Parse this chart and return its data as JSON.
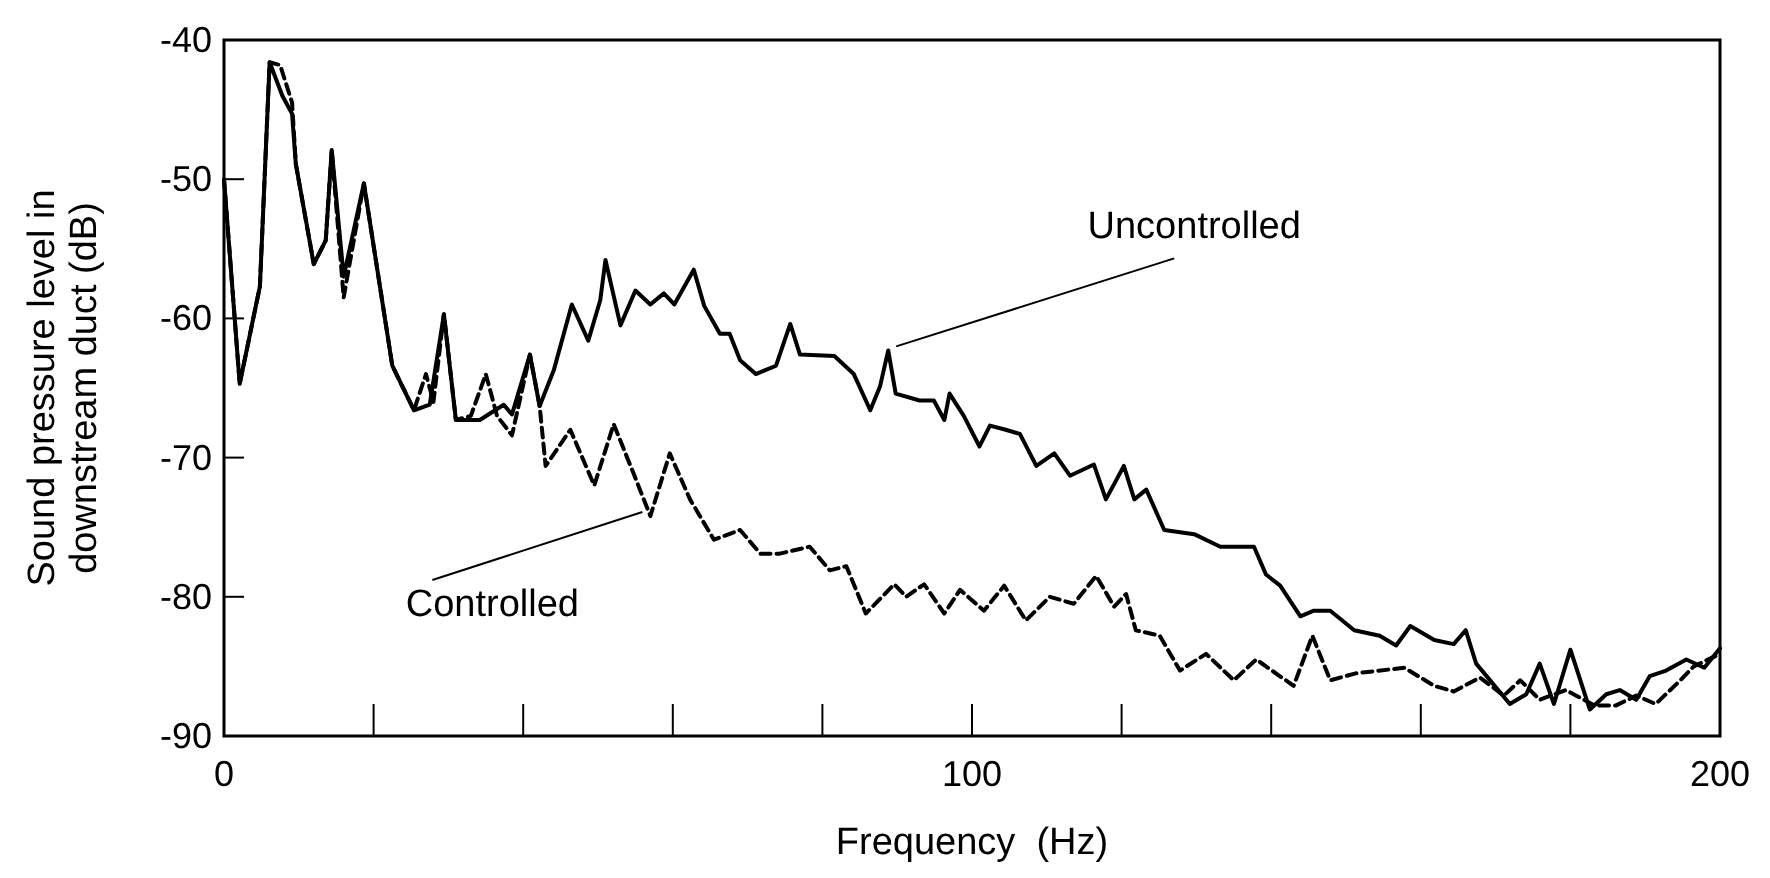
{
  "chart_data": {
    "type": "line",
    "xlabel": "Frequency  (Hz)",
    "ylabel": "Sound pressure level in downstream duct (dB)",
    "xlim": [
      0,
      200
    ],
    "ylim": [
      -90,
      -40
    ],
    "xticks": [
      0,
      {
        "value": 20,
        "label": null
      },
      {
        "value": 40,
        "label": null
      },
      {
        "value": 60,
        "label": null
      },
      {
        "value": 80,
        "label": null
      },
      100,
      {
        "value": 120,
        "label": null
      },
      {
        "value": 140,
        "label": null
      },
      {
        "value": 160,
        "label": null
      },
      {
        "value": 180,
        "label": null
      },
      200
    ],
    "yticks": [
      -90,
      -80,
      -70,
      -60,
      -50,
      -40
    ],
    "grid": false,
    "marker": "none",
    "series": [
      {
        "color": "#000000",
        "line_style": "solid",
        "x": [
          0,
          2.1,
          4.8,
          6.1,
          7.8,
          9.1,
          9.6,
          12,
          13.6,
          14.4,
          16,
          18.7,
          22.5,
          25.4,
          27.5,
          29.4,
          31,
          34.2,
          37.4,
          38.5,
          40.9,
          42.2,
          44.1,
          46.5,
          48.7,
          50.3,
          51,
          53,
          55,
          57,
          58.8,
          60.2,
          62.8,
          64.2,
          66.3,
          67.6,
          69,
          71.1,
          73.8,
          75.7,
          77,
          81.6,
          84.2,
          86.4,
          87.7,
          88.8,
          89.8,
          93,
          94.9,
          96.3,
          97,
          98.9,
          101,
          102.4,
          104.5,
          106.4,
          108.6,
          111,
          113.1,
          116.3,
          117.9,
          119.3,
          120.3,
          121.7,
          123.3,
          125.7,
          129.7,
          133.2,
          137.7,
          139.3,
          141.2,
          143.9,
          145.7,
          147.9,
          151.1,
          154.5,
          156.7,
          158.6,
          161.8,
          164.4,
          166,
          167.4,
          171.9,
          174.1,
          175.9,
          177.8,
          180,
          182.6,
          184.8,
          186.6,
          188.8,
          190.6,
          192.8,
          195.5,
          197.9,
          200
        ],
        "values": [
          -50,
          -64.7,
          -57.7,
          -41.6,
          -44,
          -45.3,
          -48.9,
          -56.1,
          -54.4,
          -47.9,
          -57,
          -50.3,
          -63.4,
          -66.6,
          -66.2,
          -59.7,
          -67.3,
          -67.3,
          -66.2,
          -66.9,
          -62.6,
          -66.3,
          -63.7,
          -59,
          -61.6,
          -58.7,
          -55.8,
          -60.5,
          -58,
          -59,
          -58.2,
          -59,
          -56.5,
          -59.1,
          -61.1,
          -61.1,
          -63,
          -64,
          -63.4,
          -60.4,
          -62.6,
          -62.7,
          -64,
          -66.6,
          -64.9,
          -62.3,
          -65.4,
          -65.9,
          -65.9,
          -67.3,
          -65.4,
          -67,
          -69.2,
          -67.7,
          -68,
          -68.3,
          -70.6,
          -69.7,
          -71.3,
          -70.5,
          -73,
          -71.6,
          -70.6,
          -73,
          -72.3,
          -75.2,
          -75.5,
          -76.4,
          -76.4,
          -78.4,
          -79.2,
          -81.4,
          -81,
          -81,
          -82.4,
          -82.8,
          -83.5,
          -82.1,
          -83.1,
          -83.4,
          -82.4,
          -84.8,
          -87.7,
          -87,
          -84.8,
          -87.7,
          -83.8,
          -88.1,
          -87,
          -86.7,
          -87.4,
          -85.7,
          -85.3,
          -84.5,
          -85.1,
          -83.7
        ]
      },
      {
        "color": "#000000",
        "line_style": "dashed",
        "x": [
          0,
          2.1,
          4.8,
          6.1,
          7.5,
          9.1,
          9.6,
          12,
          13.6,
          14.4,
          16,
          18.7,
          22.5,
          25.4,
          27,
          28,
          29.4,
          31,
          33,
          35,
          36.5,
          38.5,
          40.9,
          42.2,
          43,
          46.3,
          49.5,
          52.1,
          54.8,
          57,
          59.6,
          62.3,
          65.5,
          69,
          71.7,
          74.3,
          78.3,
          81,
          83.2,
          85.8,
          89.6,
          91.2,
          93.6,
          96.3,
          98.4,
          101.6,
          104.3,
          107.2,
          110.4,
          113.6,
          116.6,
          119,
          120.6,
          121.9,
          125.1,
          127.8,
          131.3,
          135,
          138,
          143,
          145.5,
          147.9,
          151.3,
          157.8,
          161.8,
          164.4,
          167.9,
          171.1,
          173.3,
          175.9,
          179.4,
          183.2,
          186.1,
          188.8,
          191.4,
          194.7,
          196.5,
          200
        ],
        "values": [
          -50,
          -64.7,
          -57.7,
          -41.6,
          -41.8,
          -44.5,
          -48.9,
          -56.1,
          -54.4,
          -47.9,
          -58.5,
          -50.3,
          -63.4,
          -66.6,
          -64,
          -66,
          -59.7,
          -67.3,
          -67,
          -64,
          -67,
          -68.4,
          -62.6,
          -66.3,
          -70.6,
          -68,
          -72,
          -67.6,
          -71.2,
          -74.2,
          -69.7,
          -73,
          -75.9,
          -75.2,
          -76.9,
          -76.9,
          -76.4,
          -78.1,
          -77.8,
          -81.2,
          -79.1,
          -80,
          -79.1,
          -81.2,
          -79.5,
          -81,
          -79.2,
          -81.7,
          -80,
          -80.5,
          -78.5,
          -80.7,
          -79.8,
          -82.4,
          -82.8,
          -85.3,
          -84.1,
          -86,
          -84.5,
          -86.4,
          -82.8,
          -86,
          -85.5,
          -85.1,
          -86.4,
          -86.8,
          -85.8,
          -87.1,
          -86,
          -87.4,
          -86.7,
          -87.8,
          -87.8,
          -87.1,
          -87.7,
          -86,
          -85,
          -84.1
        ]
      }
    ],
    "annotations": [
      {
        "text": "Uncontrolled",
        "x": 88.8,
        "y": -62.3
      },
      {
        "text": "Controlled",
        "x": 57,
        "y": -74.2
      }
    ]
  }
}
